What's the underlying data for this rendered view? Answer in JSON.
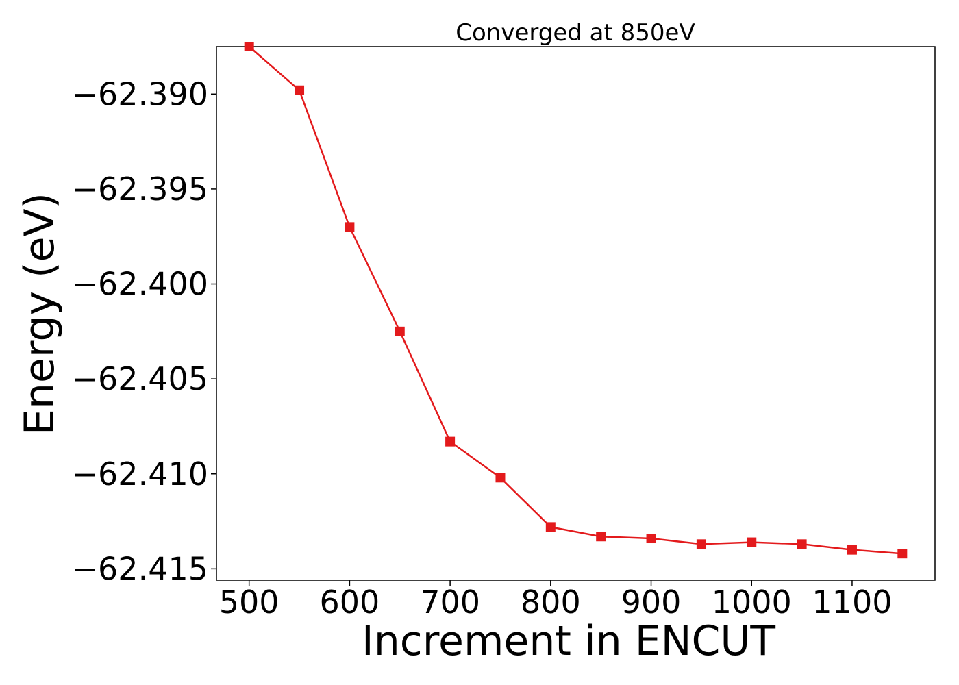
{
  "chart_data": {
    "type": "line",
    "title": "Converged at 850eV",
    "xlabel": "Increment in ENCUT",
    "ylabel": "Energy (eV)",
    "xlim": [
      467.5,
      1182.5
    ],
    "ylim": [
      -62.4156,
      -62.3875
    ],
    "xticks": [
      500,
      600,
      700,
      800,
      900,
      1000,
      1100
    ],
    "yticks": [
      -62.415,
      -62.41,
      -62.405,
      -62.4,
      -62.395,
      -62.39
    ],
    "ytick_labels": [
      "−62.415",
      "−62.410",
      "−62.405",
      "−62.400",
      "−62.395",
      "−62.390"
    ],
    "grid": false,
    "legend": "none",
    "series": [
      {
        "color": "#e31a1c",
        "marker": "square",
        "x": [
          500,
          550,
          600,
          650,
          700,
          750,
          800,
          850,
          900,
          950,
          1000,
          1050,
          1100,
          1150
        ],
        "y": [
          -62.3875,
          -62.3898,
          -62.397,
          -62.4025,
          -62.4083,
          -62.4102,
          -62.4128,
          -62.4133,
          -62.4134,
          -62.4137,
          -62.4136,
          -62.4137,
          -62.414,
          -62.4142
        ]
      }
    ]
  }
}
